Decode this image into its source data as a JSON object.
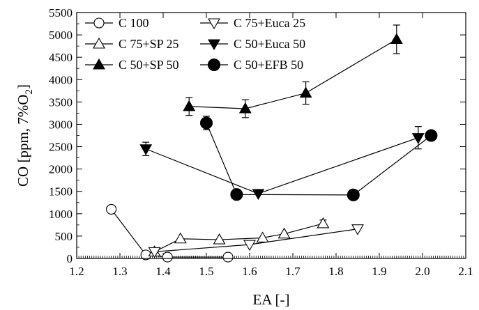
{
  "chart_data": {
    "type": "line",
    "title": "",
    "xlabel": "EA [-]",
    "ylabel": {
      "main": "CO [ppm, 7%O",
      "sub": "2",
      "close": "]"
    },
    "xlim": [
      1.2,
      2.1
    ],
    "ylim": [
      0,
      5500
    ],
    "x_ticks": [
      "1.2",
      "1.3",
      "1.4",
      "1.5",
      "1.6",
      "1.7",
      "1.8",
      "1.9",
      "2.0",
      "2.1"
    ],
    "y_ticks": [
      "0",
      "500",
      "1000",
      "1500",
      "2000",
      "2500",
      "3000",
      "3500",
      "4000",
      "4500",
      "5000",
      "5500"
    ],
    "grid": false,
    "legend_placement": "top-left",
    "series": [
      {
        "name": "C 100",
        "marker": "circle-open",
        "x": [
          1.28,
          1.36,
          1.41,
          1.55
        ],
        "y": [
          1100,
          80,
          30,
          30
        ],
        "err": [
          80,
          0,
          0,
          0
        ]
      },
      {
        "name": "C 75+SP 25",
        "marker": "triangle-up-open",
        "x": [
          1.38,
          1.44,
          1.53,
          1.63,
          1.68,
          1.77
        ],
        "y": [
          150,
          440,
          420,
          460,
          550,
          780
        ],
        "err": [
          0,
          0,
          0,
          0,
          0,
          80
        ]
      },
      {
        "name": "C 50+SP 50",
        "marker": "triangle-up-filled",
        "x": [
          1.46,
          1.59,
          1.73,
          1.94
        ],
        "y": [
          3400,
          3350,
          3700,
          4900
        ],
        "err": [
          200,
          200,
          250,
          320
        ]
      },
      {
        "name": "C 75+Euca 25",
        "marker": "triangle-down-open",
        "x": [
          1.38,
          1.6,
          1.85
        ],
        "y": [
          150,
          310,
          660
        ],
        "err": [
          0,
          0,
          0
        ]
      },
      {
        "name": "C 50+Euca 50",
        "marker": "triangle-down-filled",
        "x": [
          1.36,
          1.62,
          1.99
        ],
        "y": [
          2450,
          1450,
          2700
        ],
        "err": [
          150,
          0,
          250
        ]
      },
      {
        "name": "C 50+EFB 50",
        "marker": "circle-filled",
        "x": [
          1.5,
          1.57,
          1.84,
          2.02
        ],
        "y": [
          3030,
          1430,
          1420,
          2750
        ],
        "err": [
          150,
          0,
          0,
          0
        ]
      }
    ]
  }
}
